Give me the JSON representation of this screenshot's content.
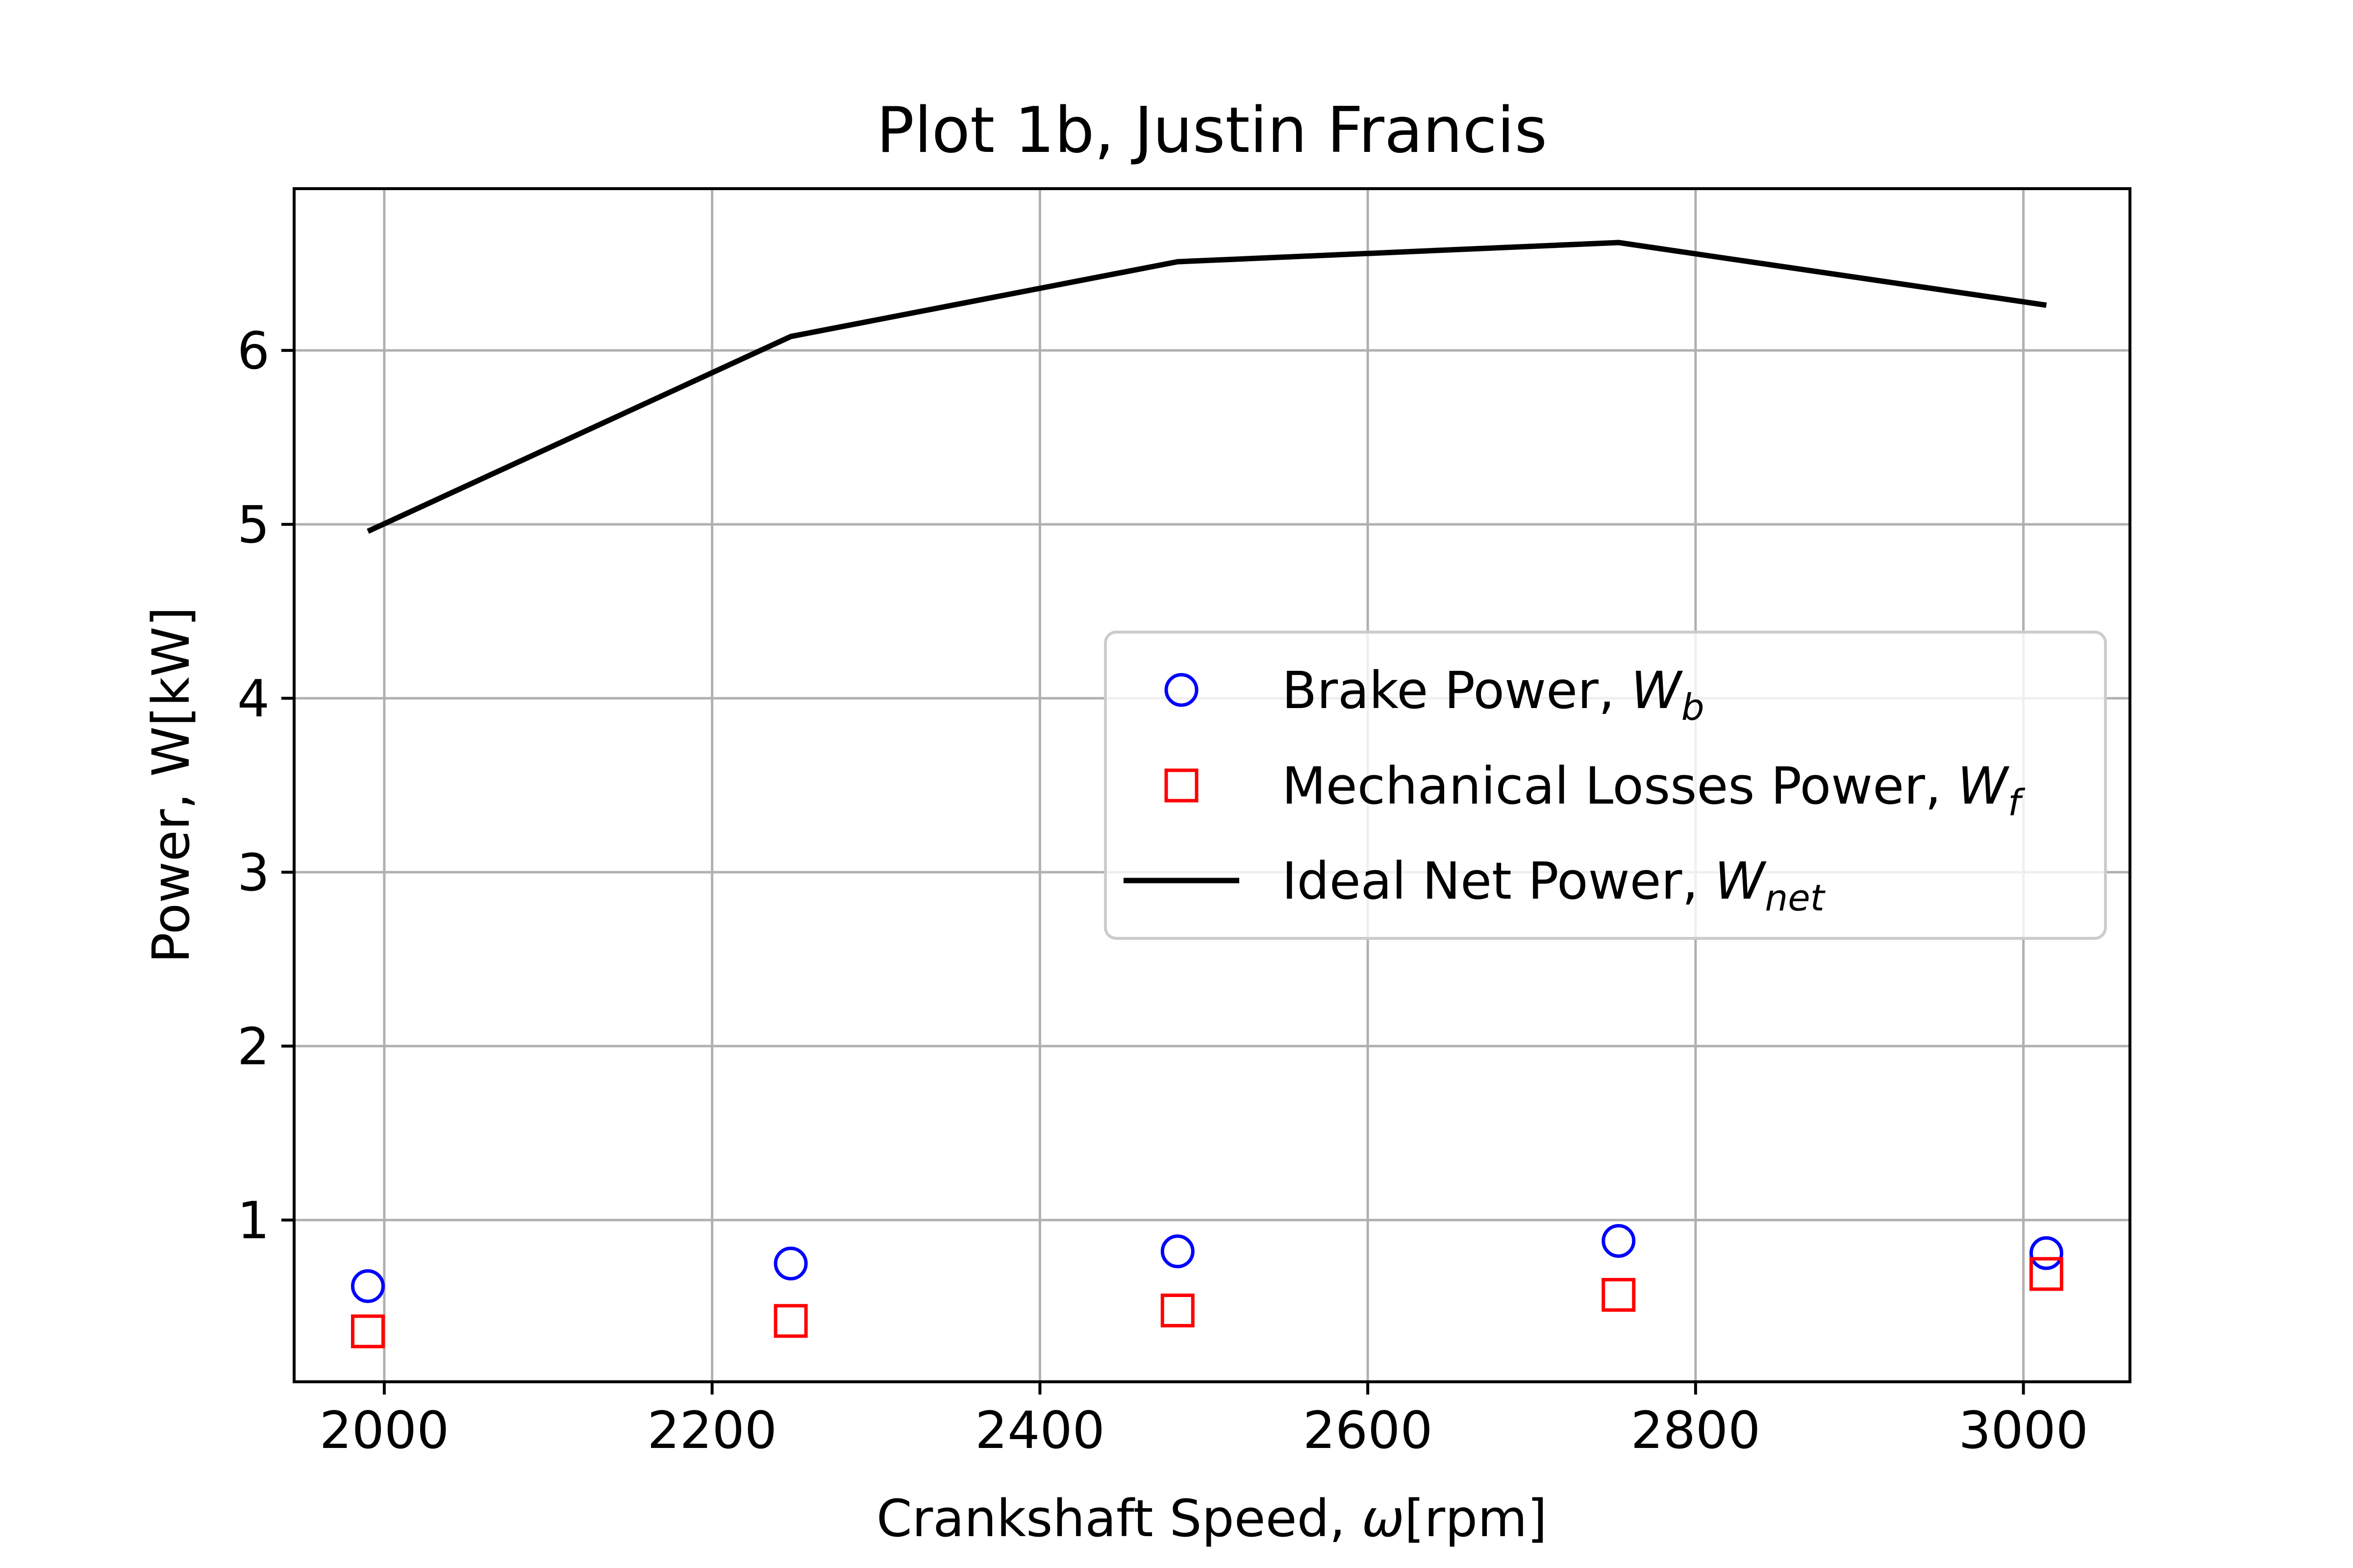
{
  "chart_data": {
    "type": "scatter",
    "title": "Plot 1b, Justin Francis",
    "xlabel": "Crankshaft Speed, ω[rpm]",
    "xlabel_parts": {
      "before": "Crankshaft Speed, ",
      "symbol": "ω",
      "after": "[rpm]"
    },
    "ylabel": "Power, W[kW]",
    "xlim": [
      1945,
      3065
    ],
    "ylim": [
      0.07,
      6.93
    ],
    "xticks": [
      2000,
      2200,
      2400,
      2600,
      2800,
      3000
    ],
    "yticks": [
      1,
      2,
      3,
      4,
      5,
      6
    ],
    "grid": true,
    "legend_position": "center-right",
    "series": [
      {
        "name": "Brake Power, Ẇb",
        "name_base": "Brake Power, ",
        "name_symbol": "W",
        "name_subscript": "b",
        "kind": "marker-circle",
        "color": "#0000ff",
        "x": [
          1990,
          2248,
          2484,
          2753,
          3014
        ],
        "y": [
          0.62,
          0.75,
          0.82,
          0.88,
          0.81
        ]
      },
      {
        "name": "Mechanical Losses Power, Ẇf",
        "name_base": "Mechanical Losses Power, ",
        "name_symbol": "W",
        "name_subscript": "f",
        "kind": "marker-square",
        "color": "#ff0000",
        "x": [
          1990,
          2248,
          2484,
          2753,
          3014
        ],
        "y": [
          0.36,
          0.42,
          0.48,
          0.57,
          0.69
        ]
      },
      {
        "name": "Ideal Net Power, Ẇnet",
        "name_base": "Ideal Net Power, ",
        "name_symbol": "W",
        "name_subscript": "net",
        "kind": "line",
        "color": "#000000",
        "x": [
          1990,
          2248,
          2484,
          2753,
          3014
        ],
        "y": [
          4.96,
          6.08,
          6.51,
          6.62,
          6.26
        ]
      }
    ]
  }
}
